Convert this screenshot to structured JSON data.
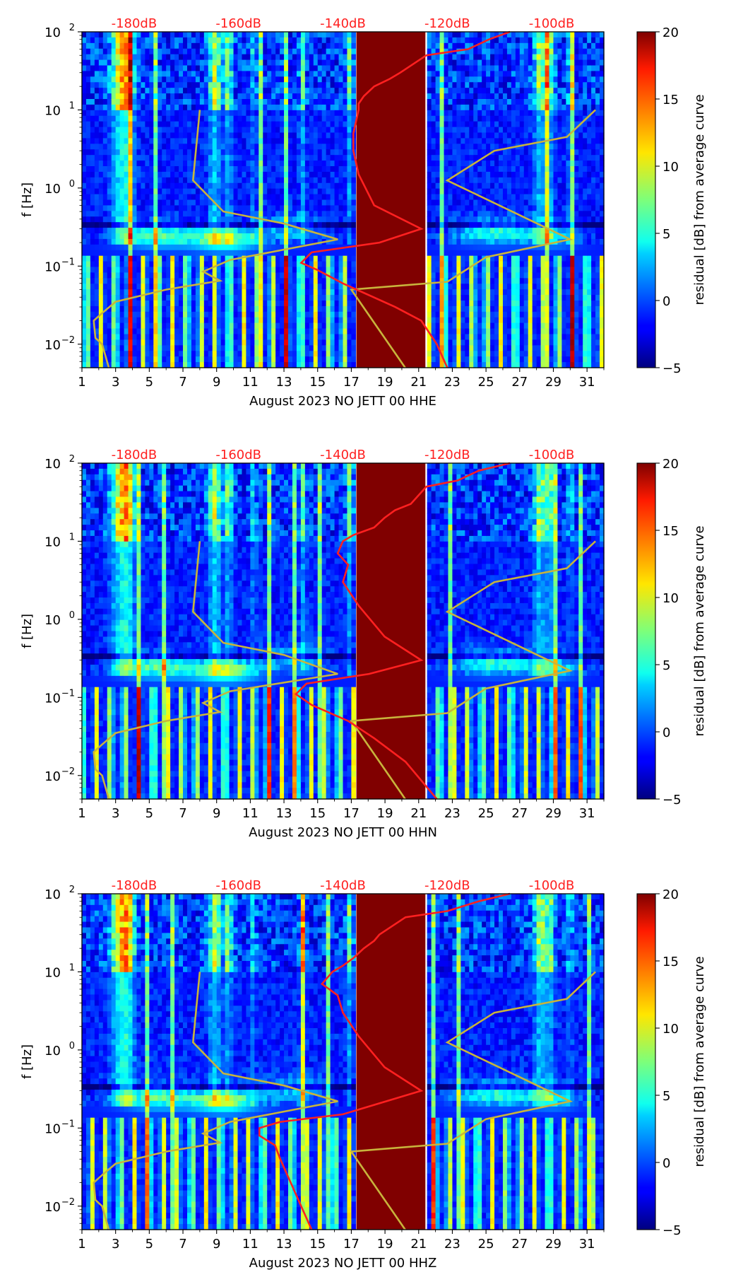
{
  "chart_data": [
    {
      "type": "heatmap",
      "xlabel": "August 2023 NO JETT 00 HHE",
      "ylabel": "f [Hz]",
      "x_ticks": [
        "1",
        "3",
        "5",
        "7",
        "9",
        "11",
        "13",
        "15",
        "17",
        "19",
        "21",
        "23",
        "25",
        "27",
        "29",
        "31"
      ],
      "x_range": [
        1,
        32
      ],
      "y_scale": "log",
      "y_range": [
        0.005,
        100
      ],
      "y_ticks": [
        {
          "base": "10",
          "exp": "−2"
        },
        {
          "base": "10",
          "exp": "−1"
        },
        {
          "base": "10",
          "exp": "0"
        },
        {
          "base": "10",
          "exp": "1"
        },
        {
          "base": "10",
          "exp": "2"
        }
      ],
      "top_ticks": [
        "-180dB",
        "-160dB",
        "-140dB",
        "-120dB",
        "-100dB"
      ],
      "colorbar": {
        "label": "residual [dB] from average curve",
        "range": [
          -5,
          20
        ],
        "ticks": [
          "−5",
          "0",
          "5",
          "10",
          "15",
          "20"
        ],
        "colormap": "jet"
      },
      "data_gap": {
        "from_day": 17.3,
        "to_day": 21.4,
        "color": "#800000"
      },
      "line_colors": {
        "average_psd": "#ff2020",
        "reference": "#c8b43c"
      },
      "average_psd": {
        "top_axis_db_range": [
          -190,
          -90
        ],
        "points": [
          [
            -108,
            100
          ],
          [
            -112,
            80
          ],
          [
            -116,
            60
          ],
          [
            -124,
            50
          ],
          [
            -129,
            30
          ],
          [
            -131,
            25
          ],
          [
            -134,
            20
          ],
          [
            -136,
            15
          ],
          [
            -137,
            12
          ],
          [
            -137,
            10
          ],
          [
            -138,
            5
          ],
          [
            -138,
            3
          ],
          [
            -137,
            1.5
          ],
          [
            -134,
            0.6
          ],
          [
            -125,
            0.3
          ],
          [
            -133,
            0.2
          ],
          [
            -146,
            0.15
          ],
          [
            -148,
            0.11
          ],
          [
            -145,
            0.09
          ],
          [
            -140,
            0.06
          ],
          [
            -130,
            0.03
          ],
          [
            -125,
            0.02
          ],
          [
            -122,
            0.01
          ],
          [
            -120,
            0.005
          ]
        ]
      },
      "reference_curve": {
        "points": [
          [
            8.0,
            10
          ],
          [
            7.6,
            1.25
          ],
          [
            9.4,
            0.5
          ],
          [
            13.0,
            0.35
          ],
          [
            16.2,
            0.22
          ],
          [
            9.8,
            0.12
          ],
          [
            8.2,
            0.085
          ],
          [
            9.2,
            0.065
          ],
          [
            6.0,
            0.05
          ],
          [
            3.0,
            0.035
          ],
          [
            2.2,
            0.025
          ],
          [
            1.7,
            0.02
          ],
          [
            1.8,
            0.012
          ],
          [
            2.2,
            0.01
          ],
          [
            2.6,
            0.005
          ]
        ],
        "right_branch": [
          [
            31.5,
            10
          ],
          [
            29.8,
            4.5
          ],
          [
            25.5,
            3.0
          ],
          [
            22.7,
            1.25
          ],
          [
            30.0,
            0.22
          ],
          [
            25.0,
            0.13
          ],
          [
            22.7,
            0.063
          ],
          [
            17.0,
            0.05
          ],
          [
            20.2,
            0.005
          ]
        ]
      }
    },
    {
      "type": "heatmap",
      "xlabel": "August 2023 NO JETT 00 HHN",
      "ylabel": "f [Hz]",
      "x_ticks": [
        "1",
        "3",
        "5",
        "7",
        "9",
        "11",
        "13",
        "15",
        "17",
        "19",
        "21",
        "23",
        "25",
        "27",
        "29",
        "31"
      ],
      "x_range": [
        1,
        32
      ],
      "y_scale": "log",
      "y_range": [
        0.005,
        100
      ],
      "y_ticks": [
        {
          "base": "10",
          "exp": "−2"
        },
        {
          "base": "10",
          "exp": "−1"
        },
        {
          "base": "10",
          "exp": "0"
        },
        {
          "base": "10",
          "exp": "1"
        },
        {
          "base": "10",
          "exp": "2"
        }
      ],
      "top_ticks": [
        "-180dB",
        "-160dB",
        "-140dB",
        "-120dB",
        "-100dB"
      ],
      "colorbar": {
        "label": "residual [dB] from average curve",
        "range": [
          -5,
          20
        ],
        "ticks": [
          "−5",
          "0",
          "5",
          "10",
          "15",
          "20"
        ],
        "colormap": "jet"
      },
      "data_gap": {
        "from_day": 17.3,
        "to_day": 21.4,
        "color": "#800000"
      },
      "line_colors": {
        "average_psd": "#ff2020",
        "reference": "#c8b43c"
      },
      "average_psd": {
        "top_axis_db_range": [
          -190,
          -90
        ],
        "points": [
          [
            -108,
            100
          ],
          [
            -114,
            80
          ],
          [
            -118,
            60
          ],
          [
            -124,
            50
          ],
          [
            -127,
            30
          ],
          [
            -130,
            25
          ],
          [
            -132,
            20
          ],
          [
            -134,
            15
          ],
          [
            -138,
            12
          ],
          [
            -140,
            10
          ],
          [
            -141,
            7
          ],
          [
            -139,
            5
          ],
          [
            -140,
            3
          ],
          [
            -137,
            1.5
          ],
          [
            -132,
            0.6
          ],
          [
            -125,
            0.3
          ],
          [
            -135,
            0.2
          ],
          [
            -147,
            0.15
          ],
          [
            -149,
            0.11
          ],
          [
            -146,
            0.08
          ],
          [
            -139,
            0.05
          ],
          [
            -134,
            0.03
          ],
          [
            -128,
            0.015
          ],
          [
            -122,
            0.005
          ]
        ]
      },
      "reference_curve": {
        "points": [
          [
            8.0,
            10
          ],
          [
            7.6,
            1.25
          ],
          [
            9.4,
            0.5
          ],
          [
            13.0,
            0.35
          ],
          [
            16.2,
            0.2
          ],
          [
            9.8,
            0.12
          ],
          [
            8.2,
            0.085
          ],
          [
            9.2,
            0.065
          ],
          [
            6.0,
            0.05
          ],
          [
            3.0,
            0.035
          ],
          [
            2.2,
            0.025
          ],
          [
            1.7,
            0.02
          ],
          [
            1.8,
            0.012
          ],
          [
            2.2,
            0.01
          ],
          [
            2.6,
            0.005
          ]
        ],
        "right_branch": [
          [
            31.5,
            10
          ],
          [
            29.8,
            4.5
          ],
          [
            25.5,
            3.0
          ],
          [
            22.7,
            1.25
          ],
          [
            30.0,
            0.22
          ],
          [
            25.0,
            0.13
          ],
          [
            22.7,
            0.063
          ],
          [
            17.0,
            0.05
          ],
          [
            20.2,
            0.005
          ]
        ]
      }
    },
    {
      "type": "heatmap",
      "xlabel": "August 2023 NO JETT 00 HHZ",
      "ylabel": "f [Hz]",
      "x_ticks": [
        "1",
        "3",
        "5",
        "7",
        "9",
        "11",
        "13",
        "15",
        "17",
        "19",
        "21",
        "23",
        "25",
        "27",
        "29",
        "31"
      ],
      "x_range": [
        1,
        32
      ],
      "y_scale": "log",
      "y_range": [
        0.005,
        100
      ],
      "y_ticks": [
        {
          "base": "10",
          "exp": "−2"
        },
        {
          "base": "10",
          "exp": "−1"
        },
        {
          "base": "10",
          "exp": "0"
        },
        {
          "base": "10",
          "exp": "1"
        },
        {
          "base": "10",
          "exp": "2"
        }
      ],
      "top_ticks": [
        "-180dB",
        "-160dB",
        "-140dB",
        "-120dB",
        "-100dB"
      ],
      "colorbar": {
        "label": "residual [dB] from average curve",
        "range": [
          -5,
          20
        ],
        "ticks": [
          "−5",
          "0",
          "5",
          "10",
          "15",
          "20"
        ],
        "colormap": "jet"
      },
      "data_gap": {
        "from_day": 17.3,
        "to_day": 21.4,
        "color": "#800000"
      },
      "line_colors": {
        "average_psd": "#ff2020",
        "reference": "#c8b43c"
      },
      "average_psd": {
        "top_axis_db_range": [
          -190,
          -90
        ],
        "points": [
          [
            -108,
            100
          ],
          [
            -114,
            80
          ],
          [
            -120,
            60
          ],
          [
            -128,
            50
          ],
          [
            -133,
            30
          ],
          [
            -134,
            25
          ],
          [
            -136,
            20
          ],
          [
            -138,
            15
          ],
          [
            -140,
            12
          ],
          [
            -142,
            10
          ],
          [
            -144,
            7
          ],
          [
            -141,
            5
          ],
          [
            -140,
            3
          ],
          [
            -137,
            1.5
          ],
          [
            -132,
            0.6
          ],
          [
            -125,
            0.3
          ],
          [
            -140,
            0.15
          ],
          [
            -152,
            0.12
          ],
          [
            -156,
            0.1
          ],
          [
            -156,
            0.08
          ],
          [
            -153,
            0.06
          ],
          [
            -152,
            0.04
          ],
          [
            -150,
            0.02
          ],
          [
            -148,
            0.01
          ],
          [
            -146,
            0.005
          ]
        ]
      },
      "reference_curve": {
        "points": [
          [
            8.0,
            10
          ],
          [
            7.6,
            1.25
          ],
          [
            9.4,
            0.5
          ],
          [
            13.0,
            0.35
          ],
          [
            16.2,
            0.22
          ],
          [
            9.8,
            0.12
          ],
          [
            8.2,
            0.085
          ],
          [
            9.2,
            0.065
          ],
          [
            6.0,
            0.05
          ],
          [
            3.0,
            0.035
          ],
          [
            2.2,
            0.025
          ],
          [
            1.7,
            0.02
          ],
          [
            1.8,
            0.012
          ],
          [
            2.2,
            0.01
          ],
          [
            2.6,
            0.005
          ]
        ],
        "right_branch": [
          [
            31.5,
            10
          ],
          [
            29.8,
            4.5
          ],
          [
            25.5,
            3.0
          ],
          [
            22.7,
            1.25
          ],
          [
            30.0,
            0.22
          ],
          [
            25.0,
            0.13
          ],
          [
            22.7,
            0.063
          ],
          [
            17.0,
            0.05
          ],
          [
            20.2,
            0.005
          ]
        ]
      }
    }
  ]
}
